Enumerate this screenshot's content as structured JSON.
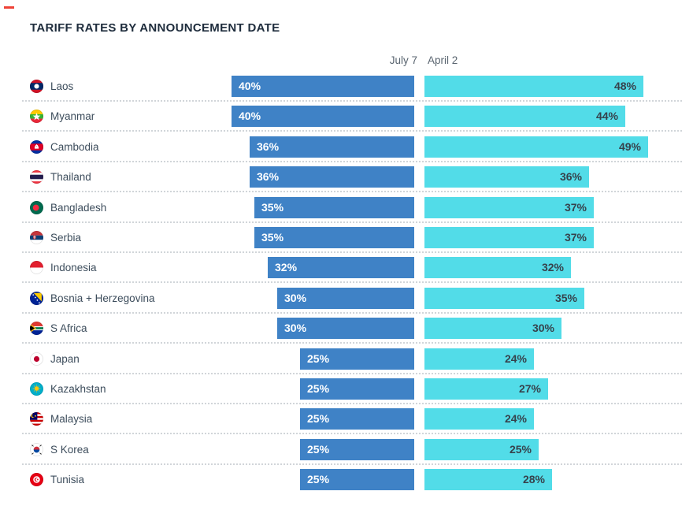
{
  "title": "TARIFF RATES BY ANNOUNCEMENT DATE",
  "columns": [
    {
      "label": "July 7"
    },
    {
      "label": "April 2"
    }
  ],
  "colors": {
    "july7_bar": "#3f82c6",
    "april2_bar": "#52dce8",
    "title_text": "#1e2c3c",
    "header_text": "#5a6570",
    "country_text": "#3d4d5c",
    "blue_value_text": "#ffffff",
    "cyan_value_text": "#36424c",
    "separator": "#d1d5d9",
    "red_dash": "#ee4237"
  },
  "rows": [
    {
      "country": "Laos",
      "flag": "laos-flag",
      "july7": {
        "value": 40,
        "label": "40%"
      },
      "april2": {
        "value": 48,
        "label": "48%"
      }
    },
    {
      "country": "Myanmar",
      "flag": "myanmar-flag",
      "july7": {
        "value": 40,
        "label": "40%"
      },
      "april2": {
        "value": 44,
        "label": "44%"
      }
    },
    {
      "country": "Cambodia",
      "flag": "cambodia-flag",
      "july7": {
        "value": 36,
        "label": "36%"
      },
      "april2": {
        "value": 49,
        "label": "49%"
      }
    },
    {
      "country": "Thailand",
      "flag": "thailand-flag",
      "july7": {
        "value": 36,
        "label": "36%"
      },
      "april2": {
        "value": 36,
        "label": "36%"
      }
    },
    {
      "country": "Bangladesh",
      "flag": "bangladesh-flag",
      "july7": {
        "value": 35,
        "label": "35%"
      },
      "april2": {
        "value": 37,
        "label": "37%"
      }
    },
    {
      "country": "Serbia",
      "flag": "serbia-flag",
      "july7": {
        "value": 35,
        "label": "35%"
      },
      "april2": {
        "value": 37,
        "label": "37%"
      }
    },
    {
      "country": "Indonesia",
      "flag": "indonesia-flag",
      "july7": {
        "value": 32,
        "label": "32%"
      },
      "april2": {
        "value": 32,
        "label": "32%"
      }
    },
    {
      "country": "Bosnia + Herzegovina",
      "flag": "bosnia-flag",
      "july7": {
        "value": 30,
        "label": "30%"
      },
      "april2": {
        "value": 35,
        "label": "35%"
      }
    },
    {
      "country": "S Africa",
      "flag": "s-africa-flag",
      "july7": {
        "value": 30,
        "label": "30%"
      },
      "april2": {
        "value": 30,
        "label": "30%"
      }
    },
    {
      "country": "Japan",
      "flag": "japan-flag",
      "july7": {
        "value": 25,
        "label": "25%"
      },
      "april2": {
        "value": 24,
        "label": "24%"
      }
    },
    {
      "country": "Kazakhstan",
      "flag": "kazakhstan-flag",
      "july7": {
        "value": 25,
        "label": "25%"
      },
      "april2": {
        "value": 27,
        "label": "27%"
      }
    },
    {
      "country": "Malaysia",
      "flag": "malaysia-flag",
      "july7": {
        "value": 25,
        "label": "25%"
      },
      "april2": {
        "value": 24,
        "label": "24%"
      }
    },
    {
      "country": "S Korea",
      "flag": "s-korea-flag",
      "july7": {
        "value": 25,
        "label": "25%"
      },
      "april2": {
        "value": 25,
        "label": "25%"
      }
    },
    {
      "country": "Tunisia",
      "flag": "tunisia-flag",
      "july7": {
        "value": 25,
        "label": "25%"
      },
      "april2": {
        "value": 28,
        "label": "28%"
      }
    }
  ],
  "chart_data": {
    "type": "bar",
    "orientation": "horizontal",
    "title": "TARIFF RATES BY ANNOUNCEMENT DATE",
    "categories": [
      "Laos",
      "Myanmar",
      "Cambodia",
      "Thailand",
      "Bangladesh",
      "Serbia",
      "Indonesia",
      "Bosnia + Herzegovina",
      "S Africa",
      "Japan",
      "Kazakhstan",
      "Malaysia",
      "S Korea",
      "Tunisia"
    ],
    "series": [
      {
        "name": "July 7",
        "color": "#3f82c6",
        "values": [
          40,
          40,
          36,
          36,
          35,
          35,
          32,
          30,
          30,
          25,
          25,
          25,
          25,
          25
        ]
      },
      {
        "name": "April 2",
        "color": "#52dce8",
        "values": [
          48,
          44,
          49,
          36,
          37,
          37,
          32,
          35,
          30,
          24,
          27,
          24,
          25,
          28
        ]
      }
    ],
    "unit": "%",
    "value_labels": true,
    "axis_shown": false,
    "xlim": [
      0,
      49
    ],
    "layout_note": "July 7 bars grow leftward from a shared right edge; April 2 bars grow rightward from a shared left edge; data labels inside bar ends"
  }
}
